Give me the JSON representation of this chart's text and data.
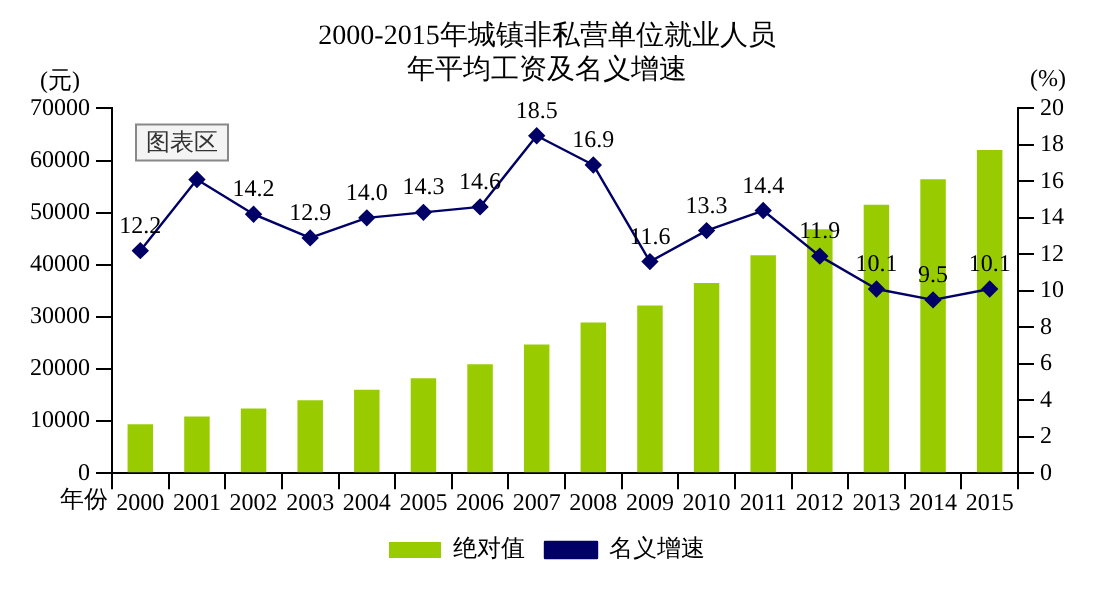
{
  "chart_data": {
    "type": "bar",
    "title": "2000-2015年城镇非私营单位就业人员年平均工资及名义增速",
    "xlabel": "年份",
    "ylabel": "(元)",
    "y2label": "(%)",
    "categories": [
      "2000",
      "2001",
      "2002",
      "2003",
      "2004",
      "2005",
      "2006",
      "2007",
      "2008",
      "2009",
      "2010",
      "2011",
      "2012",
      "2013",
      "2014",
      "2015"
    ],
    "series": [
      {
        "name": "绝对值",
        "color": "#99cc00",
        "values": [
          9400,
          10900,
          12400,
          14000,
          16000,
          18200,
          20900,
          24700,
          28900,
          32200,
          36500,
          41800,
          46800,
          51500,
          56400,
          62000
        ]
      },
      {
        "name": "名义增速",
        "type": "line",
        "axis": "y2",
        "color": "#000066",
        "marker": "diamond",
        "values": [
          12.2,
          16.1,
          14.2,
          12.9,
          14.0,
          14.3,
          14.6,
          18.5,
          16.9,
          11.6,
          13.3,
          14.4,
          11.9,
          10.1,
          9.5,
          10.1
        ],
        "value_labels": [
          "12.2",
          null,
          "14.2",
          "12.9",
          "14.0",
          "14.3",
          "14.6",
          "18.5",
          "16.9",
          "11.6",
          "13.3",
          "14.4",
          "11.9",
          "10.1",
          "9.5",
          "10.1"
        ]
      }
    ],
    "ylim": [
      0,
      70000
    ],
    "yticks": [
      0,
      10000,
      20000,
      30000,
      40000,
      50000,
      60000,
      70000
    ],
    "y2lim": [
      0,
      20
    ],
    "y2ticks": [
      0,
      2,
      4,
      6,
      8,
      10,
      12,
      14,
      16,
      18,
      20
    ],
    "annotations": [
      "图表区"
    ],
    "grid": false,
    "legend": "bottom"
  }
}
